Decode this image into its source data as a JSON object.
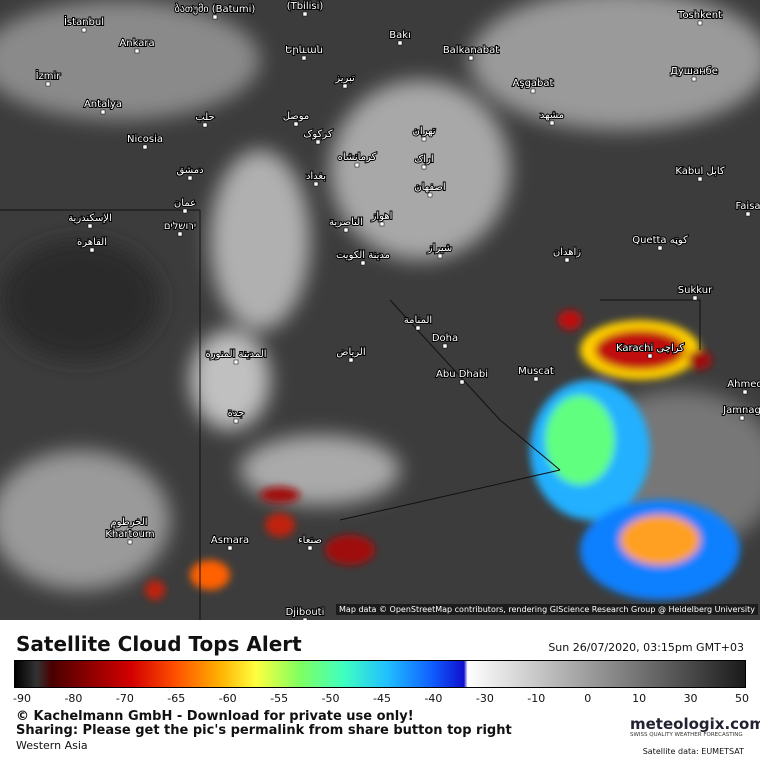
{
  "map": {
    "cities": [
      "İstanbul",
      "ბათუმი (Batumi)",
      "(Tbilisi)",
      "Ankara",
      "Երևան",
      "Bakı",
      "Balkanabat",
      "Toshkent",
      "İzmir",
      "تبریز",
      "Aşgabat",
      "Душанбе",
      "Antalya",
      "حلب",
      "موصل",
      "مشهد",
      "Nicosia",
      "کرکوک",
      "تهران",
      "کرمانشاه",
      "اراک",
      "دمشق",
      "بغداد",
      "Kabul کابل",
      "اصفهان",
      "Faisa",
      "عمان",
      "الإسكندرية",
      "ירושלים",
      "اهواز",
      "الناصرية",
      "القاهرة",
      "Quetta کوټه",
      "مدينة الكويت",
      "شیراز",
      "زاهدان",
      "Sukkur",
      "المنامة",
      "Doha",
      "Karachi کراچی",
      "الرياض",
      "المدينة المنورة",
      "Abu Dhabi",
      "Muscat",
      "Ahmed",
      "Jamnag",
      "جدة",
      "الخرطوم",
      "Khartoum",
      "Asmara",
      "صنعاء",
      "Djibouti"
    ],
    "attribution": "Map data © OpenStreetMap contributors, rendering GIScience Research Group @ Heidelberg University"
  },
  "footer": {
    "title": "Satellite Cloud Tops Alert",
    "timestamp": "Sun 26/07/2020, 03:15pm GMT+03",
    "scale_ticks": [
      -90,
      -80,
      -70,
      -65,
      -60,
      -55,
      -50,
      -45,
      -40,
      -30,
      -10,
      0,
      10,
      30,
      50
    ],
    "copyright": "© Kachelmann GmbH - Download for private use only!",
    "sharing": "Sharing: Please get the pic's permalink from share button top right",
    "region": "Western Asia",
    "brand": "meteologix.com",
    "tagline": "SWISS QUALITY WEATHER FORECASTING",
    "source": "Satellite data: EUMETSAT"
  }
}
